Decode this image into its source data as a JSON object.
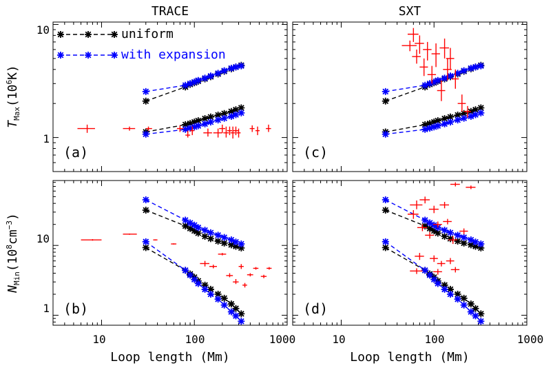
{
  "titles": {
    "left": "TRACE",
    "right": "SXT"
  },
  "xlabel": "Loop length (Mm)",
  "ylabel_top": {
    "symbol": "T",
    "sub": "Max",
    "unit_pre": "(10",
    "unit_exp": "6",
    "unit_post": "K)"
  },
  "ylabel_bottom": {
    "symbol": "N",
    "sub": "Min",
    "unit_pre": "(10",
    "unit_exp": "8",
    "unit_post": "cm",
    "unit_exp2": "−3",
    "unit_close": ")"
  },
  "x_ticks": [
    "10",
    "100",
    "1000"
  ],
  "y_ticks_top": [
    "10",
    "1"
  ],
  "y_ticks_bottom": [
    "10",
    "1"
  ],
  "panel_labels": [
    "(a)",
    "(b)",
    "(c)",
    "(d)"
  ],
  "colors": {
    "uniform": "#000000",
    "expansion": "#0000ff",
    "data": "#ff0000"
  },
  "chart_data": {
    "type": "scatter",
    "x_scale": "log",
    "y_scale": "log",
    "xlim": [
      3,
      1000
    ],
    "ylim_top": [
      0.5,
      10.5
    ],
    "ylim_bottom": [
      0.72,
      85
    ],
    "legend": {
      "placement": "top-left",
      "entries": [
        "uniform",
        "with expansion"
      ]
    },
    "model_x": [
      30,
      80,
      90,
      100,
      110,
      130,
      150,
      180,
      210,
      250,
      280,
      320
    ],
    "models": {
      "T_uniform_hi": [
        2.1,
        2.8,
        2.95,
        3.05,
        3.15,
        3.3,
        3.45,
        3.65,
        3.85,
        4.05,
        4.2,
        4.35
      ],
      "T_expansion_hi": [
        2.55,
        2.9,
        3.0,
        3.1,
        3.2,
        3.35,
        3.5,
        3.7,
        3.9,
        4.1,
        4.2,
        4.3
      ],
      "T_uniform_lo": [
        1.12,
        1.3,
        1.33,
        1.37,
        1.41,
        1.47,
        1.52,
        1.58,
        1.63,
        1.7,
        1.76,
        1.83
      ],
      "T_expansion_lo": [
        1.07,
        1.18,
        1.21,
        1.24,
        1.27,
        1.32,
        1.37,
        1.43,
        1.48,
        1.54,
        1.59,
        1.65
      ],
      "N_uniform_hi": [
        32,
        19,
        17.5,
        16.2,
        15.0,
        13.5,
        12.5,
        11.5,
        10.8,
        10.2,
        9.7,
        9.2
      ],
      "N_expansion_hi": [
        45,
        23,
        21,
        19.5,
        18.0,
        16.5,
        15.2,
        14.0,
        13.0,
        12.0,
        11.2,
        10.5
      ],
      "N_uniform_lo": [
        9.3,
        4.4,
        3.9,
        3.5,
        3.1,
        2.7,
        2.35,
        2.0,
        1.75,
        1.45,
        1.25,
        1.05
      ],
      "N_expansion_lo": [
        11.3,
        4.4,
        3.75,
        3.25,
        2.85,
        2.35,
        2.0,
        1.7,
        1.4,
        1.12,
        0.98,
        0.82
      ]
    },
    "trace_T": [
      {
        "x": 7,
        "y": 1.2,
        "xlo": 5.5,
        "xhi": 8.5,
        "ylo": 1.1,
        "yhi": 1.3
      },
      {
        "x": 20,
        "y": 1.2,
        "xlo": 17,
        "xhi": 23,
        "ylo": 1.15,
        "yhi": 1.25
      },
      {
        "x": 32,
        "y": 1.2,
        "xlo": 30,
        "xhi": 35,
        "ylo": 1.15,
        "yhi": 1.25
      },
      {
        "x": 70,
        "y": 1.2,
        "xlo": 65,
        "xhi": 76,
        "ylo": 1.12,
        "yhi": 1.28
      },
      {
        "x": 85,
        "y": 1.05,
        "xlo": 80,
        "xhi": 90,
        "ylo": 1.0,
        "yhi": 1.15
      },
      {
        "x": 95,
        "y": 1.15,
        "xlo": 90,
        "xhi": 100,
        "ylo": 1.05,
        "yhi": 1.25
      },
      {
        "x": 140,
        "y": 1.1,
        "xlo": 125,
        "xhi": 155,
        "ylo": 1.02,
        "yhi": 1.2
      },
      {
        "x": 180,
        "y": 1.1,
        "xlo": 160,
        "xhi": 200,
        "ylo": 1.0,
        "yhi": 1.2
      },
      {
        "x": 200,
        "y": 1.2,
        "xlo": 185,
        "xhi": 215,
        "ylo": 1.1,
        "yhi": 1.3
      },
      {
        "x": 220,
        "y": 1.1,
        "xlo": 205,
        "xhi": 235,
        "ylo": 1.0,
        "yhi": 1.25
      },
      {
        "x": 240,
        "y": 1.15,
        "xlo": 225,
        "xhi": 255,
        "ylo": 1.05,
        "yhi": 1.25
      },
      {
        "x": 260,
        "y": 1.1,
        "xlo": 245,
        "xhi": 275,
        "ylo": 0.98,
        "yhi": 1.25
      },
      {
        "x": 280,
        "y": 1.15,
        "xlo": 262,
        "xhi": 298,
        "ylo": 1.05,
        "yhi": 1.25
      },
      {
        "x": 300,
        "y": 1.1,
        "xlo": 285,
        "xhi": 315,
        "ylo": 1.0,
        "yhi": 1.2
      },
      {
        "x": 420,
        "y": 1.2,
        "xlo": 395,
        "xhi": 445,
        "ylo": 1.12,
        "yhi": 1.28
      },
      {
        "x": 480,
        "y": 1.15,
        "xlo": 455,
        "xhi": 505,
        "ylo": 1.05,
        "yhi": 1.25
      },
      {
        "x": 630,
        "y": 1.2,
        "xlo": 590,
        "xhi": 670,
        "ylo": 1.12,
        "yhi": 1.3
      }
    ],
    "trace_N": [
      {
        "x": 8,
        "y": 12,
        "xlo": 6,
        "xhi": 10,
        "ylo": 11.7,
        "yhi": 12.3
      },
      {
        "x": 20,
        "y": 14.5,
        "xlo": 17,
        "xhi": 24,
        "ylo": 14.2,
        "yhi": 14.8
      },
      {
        "x": 38,
        "y": 12,
        "xlo": 36,
        "xhi": 40,
        "ylo": 11.8,
        "yhi": 12.2
      },
      {
        "x": 60,
        "y": 10.5,
        "xlo": 56,
        "xhi": 64,
        "ylo": 10.3,
        "yhi": 10.7
      },
      {
        "x": 130,
        "y": 5.5,
        "xlo": 115,
        "xhi": 145,
        "ylo": 5.0,
        "yhi": 6.0
      },
      {
        "x": 160,
        "y": 5.0,
        "xlo": 145,
        "xhi": 175,
        "ylo": 4.7,
        "yhi": 5.3
      },
      {
        "x": 200,
        "y": 7.5,
        "xlo": 180,
        "xhi": 220,
        "ylo": 7.2,
        "yhi": 7.8
      },
      {
        "x": 240,
        "y": 3.7,
        "xlo": 220,
        "xhi": 260,
        "ylo": 3.5,
        "yhi": 4.0
      },
      {
        "x": 280,
        "y": 3.0,
        "xlo": 260,
        "xhi": 300,
        "ylo": 2.8,
        "yhi": 3.3
      },
      {
        "x": 320,
        "y": 5.0,
        "xlo": 300,
        "xhi": 340,
        "ylo": 4.6,
        "yhi": 5.4
      },
      {
        "x": 350,
        "y": 2.7,
        "xlo": 330,
        "xhi": 370,
        "ylo": 2.5,
        "yhi": 2.9
      },
      {
        "x": 400,
        "y": 3.8,
        "xlo": 370,
        "xhi": 430,
        "ylo": 3.6,
        "yhi": 4.0
      },
      {
        "x": 460,
        "y": 4.7,
        "xlo": 430,
        "xhi": 490,
        "ylo": 4.5,
        "yhi": 4.9
      },
      {
        "x": 560,
        "y": 3.6,
        "xlo": 520,
        "xhi": 600,
        "ylo": 3.4,
        "yhi": 3.8
      },
      {
        "x": 640,
        "y": 4.7,
        "xlo": 600,
        "xhi": 680,
        "ylo": 4.5,
        "yhi": 4.9
      }
    ],
    "sxt_T": [
      {
        "x": 55,
        "y": 6.5,
        "xlo": 45,
        "xhi": 65,
        "ylo": 5.8,
        "yhi": 7.2
      },
      {
        "x": 60,
        "y": 8.2,
        "xlo": 52,
        "xhi": 68,
        "ylo": 7.0,
        "yhi": 9.3
      },
      {
        "x": 65,
        "y": 5.2,
        "xlo": 58,
        "xhi": 72,
        "ylo": 4.5,
        "yhi": 6.0
      },
      {
        "x": 70,
        "y": 6.8,
        "xlo": 62,
        "xhi": 78,
        "ylo": 5.5,
        "yhi": 8.0
      },
      {
        "x": 78,
        "y": 4.2,
        "xlo": 70,
        "xhi": 86,
        "ylo": 3.5,
        "yhi": 5.0
      },
      {
        "x": 85,
        "y": 6.0,
        "xlo": 76,
        "xhi": 94,
        "ylo": 4.8,
        "yhi": 7.0
      },
      {
        "x": 95,
        "y": 3.6,
        "xlo": 85,
        "xhi": 105,
        "ylo": 3.0,
        "yhi": 4.3
      },
      {
        "x": 105,
        "y": 5.5,
        "xlo": 94,
        "xhi": 116,
        "ylo": 4.2,
        "yhi": 6.8
      },
      {
        "x": 120,
        "y": 2.6,
        "xlo": 108,
        "xhi": 132,
        "ylo": 2.1,
        "yhi": 3.2
      },
      {
        "x": 130,
        "y": 6.2,
        "xlo": 115,
        "xhi": 145,
        "ylo": 5.0,
        "yhi": 7.5
      },
      {
        "x": 140,
        "y": 4.0,
        "xlo": 125,
        "xhi": 155,
        "ylo": 3.2,
        "yhi": 5.0
      },
      {
        "x": 150,
        "y": 5.0,
        "xlo": 135,
        "xhi": 165,
        "ylo": 4.0,
        "yhi": 6.2
      },
      {
        "x": 170,
        "y": 3.3,
        "xlo": 155,
        "xhi": 185,
        "ylo": 2.7,
        "yhi": 4.0
      },
      {
        "x": 200,
        "y": 2.0,
        "xlo": 180,
        "xhi": 220,
        "ylo": 1.7,
        "yhi": 2.4
      },
      {
        "x": 230,
        "y": 1.7,
        "xlo": 210,
        "xhi": 250,
        "ylo": 1.5,
        "yhi": 1.9
      }
    ],
    "sxt_N": [
      {
        "x": 65,
        "y": 38,
        "xlo": 55,
        "xhi": 75,
        "ylo": 33,
        "yhi": 44
      },
      {
        "x": 80,
        "y": 45,
        "xlo": 70,
        "xhi": 90,
        "ylo": 40,
        "yhi": 50
      },
      {
        "x": 60,
        "y": 28,
        "xlo": 52,
        "xhi": 68,
        "ylo": 24,
        "yhi": 32
      },
      {
        "x": 100,
        "y": 33,
        "xlo": 88,
        "xhi": 112,
        "ylo": 29,
        "yhi": 37
      },
      {
        "x": 130,
        "y": 38,
        "xlo": 115,
        "xhi": 145,
        "ylo": 34,
        "yhi": 42
      },
      {
        "x": 170,
        "y": 75,
        "xlo": 150,
        "xhi": 190,
        "ylo": 70,
        "yhi": 80
      },
      {
        "x": 250,
        "y": 68,
        "xlo": 220,
        "xhi": 280,
        "ylo": 64,
        "yhi": 72
      },
      {
        "x": 75,
        "y": 18,
        "xlo": 66,
        "xhi": 84,
        "ylo": 16,
        "yhi": 20
      },
      {
        "x": 90,
        "y": 14,
        "xlo": 80,
        "xhi": 100,
        "ylo": 12.5,
        "yhi": 15.5
      },
      {
        "x": 110,
        "y": 20,
        "xlo": 98,
        "xhi": 122,
        "ylo": 18,
        "yhi": 22
      },
      {
        "x": 140,
        "y": 22,
        "xlo": 125,
        "xhi": 155,
        "ylo": 20,
        "yhi": 24
      },
      {
        "x": 160,
        "y": 12,
        "xlo": 143,
        "xhi": 177,
        "ylo": 10.5,
        "yhi": 13.5
      },
      {
        "x": 210,
        "y": 16,
        "xlo": 188,
        "xhi": 232,
        "ylo": 14.5,
        "yhi": 17.5
      },
      {
        "x": 70,
        "y": 7.0,
        "xlo": 62,
        "xhi": 78,
        "ylo": 6.2,
        "yhi": 7.8
      },
      {
        "x": 100,
        "y": 6.5,
        "xlo": 90,
        "xhi": 110,
        "ylo": 5.8,
        "yhi": 7.2
      },
      {
        "x": 120,
        "y": 5.5,
        "xlo": 108,
        "xhi": 132,
        "ylo": 5.0,
        "yhi": 6.0
      },
      {
        "x": 150,
        "y": 6.0,
        "xlo": 135,
        "xhi": 165,
        "ylo": 5.4,
        "yhi": 6.6
      },
      {
        "x": 65,
        "y": 4.3,
        "xlo": 55,
        "xhi": 75,
        "ylo": 3.9,
        "yhi": 4.7
      },
      {
        "x": 110,
        "y": 4.2,
        "xlo": 98,
        "xhi": 122,
        "ylo": 3.8,
        "yhi": 4.6
      },
      {
        "x": 170,
        "y": 4.5,
        "xlo": 152,
        "xhi": 188,
        "ylo": 4.1,
        "yhi": 4.9
      }
    ]
  }
}
